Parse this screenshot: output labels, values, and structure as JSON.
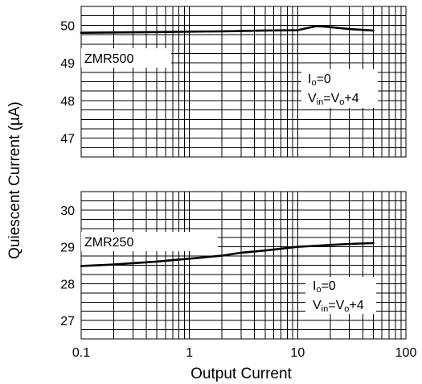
{
  "chart_data": {
    "type": "line",
    "xlabel": "Output Current",
    "ylabel": "Quiescent Current (µA)",
    "xscale": "log",
    "xlim": [
      0.1,
      100
    ],
    "x_ticks": [
      "0.1",
      "1",
      "10",
      "100"
    ],
    "grid": true,
    "panels": [
      {
        "ylim": [
          46.5,
          50.5
        ],
        "y_ticks": [
          "50",
          "49",
          "48",
          "47"
        ],
        "series": [
          {
            "name": "ZMR500",
            "x": [
              0.1,
              0.2,
              0.5,
              1,
              2,
              5,
              10,
              12,
              15,
              20,
              30,
              50
            ],
            "y": [
              49.8,
              49.81,
              49.82,
              49.83,
              49.84,
              49.86,
              49.87,
              49.92,
              49.98,
              49.95,
              49.9,
              49.86
            ]
          }
        ],
        "annotations": {
          "label": "ZMR500",
          "cond1_main": "I",
          "cond1_sub": "o",
          "cond1_tail": "=0",
          "cond2_a": "V",
          "cond2_sub1": "in",
          "cond2_b": "=V",
          "cond2_sub2": "o",
          "cond2_c": "+4"
        }
      },
      {
        "ylim": [
          26.5,
          30.5
        ],
        "y_ticks": [
          "30",
          "29",
          "28",
          "27"
        ],
        "series": [
          {
            "name": "ZMR250",
            "x": [
              0.1,
              0.2,
              0.5,
              1,
              2,
              3,
              5,
              10,
              20,
              30,
              50
            ],
            "y": [
              28.48,
              28.52,
              28.6,
              28.68,
              28.76,
              28.84,
              28.9,
              29.0,
              29.05,
              29.08,
              29.1
            ]
          }
        ],
        "annotations": {
          "label": "ZMR250",
          "cond1_main": "I",
          "cond1_sub": "o",
          "cond1_tail": "=0",
          "cond2_a": "V",
          "cond2_sub1": "in",
          "cond2_b": "=V",
          "cond2_sub2": "o",
          "cond2_c": "+4"
        }
      }
    ]
  }
}
